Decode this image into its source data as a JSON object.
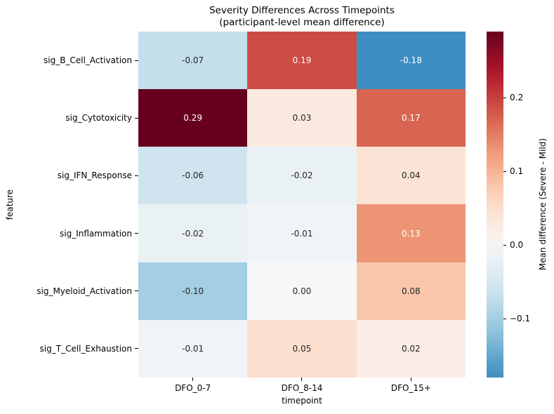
{
  "chart_data": {
    "type": "heatmap",
    "title": "Severity Differences Across Timepoints",
    "subtitle": "(participant-level mean difference)",
    "xlabel": "timepoint",
    "ylabel": "feature",
    "columns": [
      "DFO_0-7",
      "DFO_8-14",
      "DFO_15+"
    ],
    "rows": [
      "sig_B_Cell_Activation",
      "sig_Cytotoxicity",
      "sig_IFN_Response",
      "sig_Inflammation",
      "sig_Myeloid_Activation",
      "sig_T_Cell_Exhaustion"
    ],
    "values": [
      [
        -0.07,
        0.19,
        -0.18
      ],
      [
        0.29,
        0.03,
        0.17
      ],
      [
        -0.06,
        -0.02,
        0.04
      ],
      [
        -0.02,
        -0.01,
        0.13
      ],
      [
        -0.1,
        0.0,
        0.08
      ],
      [
        -0.01,
        0.05,
        0.02
      ]
    ],
    "annotation_decimals": 2,
    "colorbar": {
      "label": "Mean difference (Severe - Mild)",
      "vmin": -0.18,
      "vmax": 0.29,
      "ticks": [
        {
          "value": 0.2,
          "label": "0.2"
        },
        {
          "value": 0.1,
          "label": "0.1"
        },
        {
          "value": 0.0,
          "label": "0.0"
        },
        {
          "value": -0.1,
          "label": "−0.1"
        }
      ]
    },
    "colormap": {
      "name": "RdBu_r",
      "anchors": [
        "#053061",
        "#2166ac",
        "#4393c3",
        "#92c5de",
        "#d1e5f0",
        "#f7f7f7",
        "#fddbc7",
        "#f4a582",
        "#d6604d",
        "#b2182b",
        "#67001f"
      ],
      "center": 0,
      "halfspan": 0.29
    },
    "annotation_text_colors": {
      "light": "#ffffff",
      "dark": "#262626"
    }
  }
}
